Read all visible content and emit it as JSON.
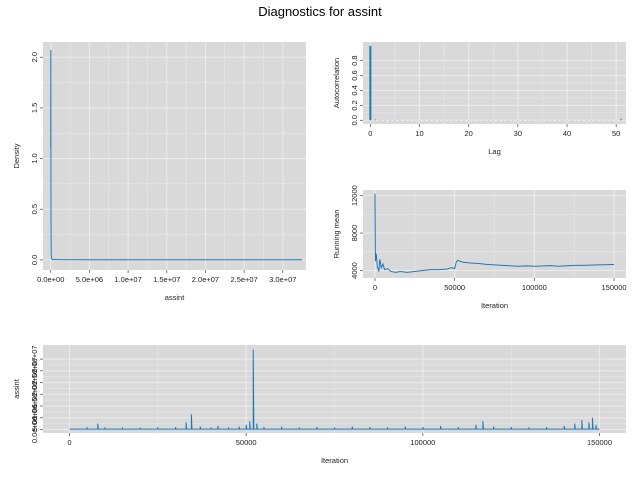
{
  "title": "Diagnostics for assint",
  "colors": {
    "panel": "#d9d9d9",
    "grid": "#ebebeb",
    "line": "#1f78b4"
  },
  "chart_data": [
    {
      "id": "density",
      "type": "line",
      "xlabel": "assint",
      "ylabel": "Density",
      "xlim": [
        -1000000,
        33000000
      ],
      "ylim": [
        -0.1,
        2.15
      ],
      "xticks": [
        0,
        5000000,
        10000000,
        15000000,
        20000000,
        25000000,
        30000000
      ],
      "xtick_labels": [
        "0.0e+00",
        "5.0e+06",
        "1.0e+07",
        "1.5e+07",
        "2.0e+07",
        "2.5e+07",
        "3.0e+07"
      ],
      "yticks": [
        0,
        0.5,
        1,
        1.5,
        2
      ],
      "ytick_labels": [
        "0.0",
        "0.5",
        "1.0",
        "1.5",
        "2.0"
      ],
      "x": [
        0,
        10000,
        20000,
        30000,
        60000,
        100000,
        200000,
        500000,
        1000000,
        5000000,
        10000000,
        20000000,
        32500000
      ],
      "y": [
        1.1,
        2.07,
        1.3,
        0.4,
        0.05,
        0.01,
        0.005,
        0.003,
        0.002,
        0.001,
        0.001,
        0.001,
        0.001
      ]
    },
    {
      "id": "autocorrelation",
      "type": "bar",
      "xlabel": "Lag",
      "ylabel": "Autocorrelation",
      "xlim": [
        -1.5,
        52
      ],
      "ylim": [
        -0.05,
        1.05
      ],
      "xticks": [
        0,
        10,
        20,
        30,
        40,
        50
      ],
      "xtick_labels": [
        "0",
        "10",
        "20",
        "30",
        "40",
        "50"
      ],
      "yticks": [
        0,
        0.2,
        0.4,
        0.6,
        0.8
      ],
      "ytick_labels": [
        "0.0",
        "0.2",
        "0.4",
        "0.6",
        "0.8"
      ],
      "lags": [
        0,
        1,
        2,
        3,
        4,
        5,
        6,
        7,
        8,
        9,
        10,
        11,
        12,
        13,
        14,
        15,
        16,
        17,
        18,
        19,
        20,
        21,
        22,
        23,
        24,
        25,
        26,
        27,
        28,
        29,
        30,
        31,
        32,
        33,
        34,
        35,
        36,
        37,
        38,
        39,
        40,
        41,
        42,
        43,
        44,
        45,
        46,
        47,
        48,
        49,
        50,
        51
      ],
      "values": [
        1.0,
        0.01,
        0.005,
        0.005,
        0.004,
        0.004,
        0.004,
        0.003,
        0.003,
        0.003,
        0.003,
        0.003,
        0.003,
        0.003,
        0.003,
        0.003,
        0.003,
        0.003,
        0.003,
        0.003,
        0.003,
        0.003,
        0.003,
        0.003,
        0.003,
        0.003,
        0.003,
        0.003,
        0.003,
        0.003,
        0.003,
        0.003,
        0.003,
        0.003,
        0.003,
        0.003,
        0.003,
        0.003,
        0.003,
        0.003,
        0.003,
        0.003,
        0.003,
        0.003,
        0.003,
        0.003,
        0.003,
        0.003,
        0.003,
        0.003,
        0.003,
        0.02
      ]
    },
    {
      "id": "running-mean",
      "type": "line",
      "xlabel": "Iteration",
      "ylabel": "Running mean",
      "xlim": [
        -7500,
        157500
      ],
      "ylim": [
        3200,
        12600
      ],
      "xticks": [
        0,
        50000,
        100000,
        150000
      ],
      "xtick_labels": [
        "0",
        "50000",
        "100000",
        "150000"
      ],
      "yticks": [
        4000,
        8000,
        12000
      ],
      "ytick_labels": [
        "4000",
        "8000",
        "12000"
      ],
      "x": [
        0,
        300,
        800,
        1500,
        2500,
        3000,
        4000,
        5000,
        6000,
        8000,
        10000,
        13000,
        16000,
        20000,
        25000,
        30000,
        35000,
        40000,
        45000,
        48000,
        50000,
        51000,
        52000,
        53000,
        55000,
        60000,
        65000,
        70000,
        75000,
        80000,
        85000,
        90000,
        95000,
        100000,
        105000,
        110000,
        115000,
        120000,
        125000,
        130000,
        135000,
        140000,
        145000,
        150000
      ],
      "y": [
        12200,
        5000,
        5800,
        4400,
        3900,
        5200,
        4300,
        4700,
        4100,
        4200,
        3900,
        3800,
        3900,
        3800,
        3900,
        4000,
        4100,
        4100,
        4150,
        4300,
        4200,
        4900,
        5100,
        5000,
        4900,
        4800,
        4750,
        4650,
        4600,
        4550,
        4500,
        4450,
        4500,
        4450,
        4480,
        4520,
        4450,
        4500,
        4550,
        4550,
        4580,
        4600,
        4620,
        4650
      ]
    },
    {
      "id": "trace",
      "type": "line",
      "xlabel": "Iteration",
      "ylabel": "assint",
      "xlim": [
        -7500,
        157500
      ],
      "ylim": [
        -1500000,
        36000000
      ],
      "xticks": [
        0,
        50000,
        100000,
        150000
      ],
      "xtick_labels": [
        "0",
        "50000",
        "100000",
        "150000"
      ],
      "yticks": [
        0,
        5000000,
        10000000,
        15000000,
        20000000,
        25000000,
        30000000
      ],
      "ytick_labels": [
        "0.0e+00",
        "5.0e+06",
        "1.0e+07",
        "1.5e+07",
        "2.0e+07",
        "2.5e+07",
        "3.0e+07"
      ],
      "baseline": 150000,
      "spikes": [
        [
          5000,
          600000
        ],
        [
          8000,
          2500000
        ],
        [
          10000,
          800000
        ],
        [
          15000,
          500000
        ],
        [
          20000,
          700000
        ],
        [
          25000,
          600000
        ],
        [
          30000,
          1000000
        ],
        [
          33000,
          3000000
        ],
        [
          34500,
          6500000
        ],
        [
          37000,
          1200000
        ],
        [
          40000,
          800000
        ],
        [
          42000,
          1500000
        ],
        [
          45000,
          800000
        ],
        [
          48000,
          1200000
        ],
        [
          50000,
          2000000
        ],
        [
          51000,
          3500000
        ],
        [
          52000,
          34000000
        ],
        [
          53000,
          2500000
        ],
        [
          55000,
          1000000
        ],
        [
          60000,
          1200000
        ],
        [
          65000,
          800000
        ],
        [
          70000,
          1000000
        ],
        [
          75000,
          800000
        ],
        [
          80000,
          1200000
        ],
        [
          85000,
          1000000
        ],
        [
          90000,
          900000
        ],
        [
          95000,
          1200000
        ],
        [
          100000,
          1000000
        ],
        [
          105000,
          1500000
        ],
        [
          110000,
          1000000
        ],
        [
          115000,
          2000000
        ],
        [
          117000,
          3500000
        ],
        [
          120000,
          1200000
        ],
        [
          125000,
          1000000
        ],
        [
          130000,
          800000
        ],
        [
          135000,
          1000000
        ],
        [
          140000,
          1500000
        ],
        [
          143000,
          2500000
        ],
        [
          145000,
          4000000
        ],
        [
          147000,
          3000000
        ],
        [
          148000,
          5000000
        ],
        [
          149000,
          2000000
        ]
      ]
    }
  ]
}
